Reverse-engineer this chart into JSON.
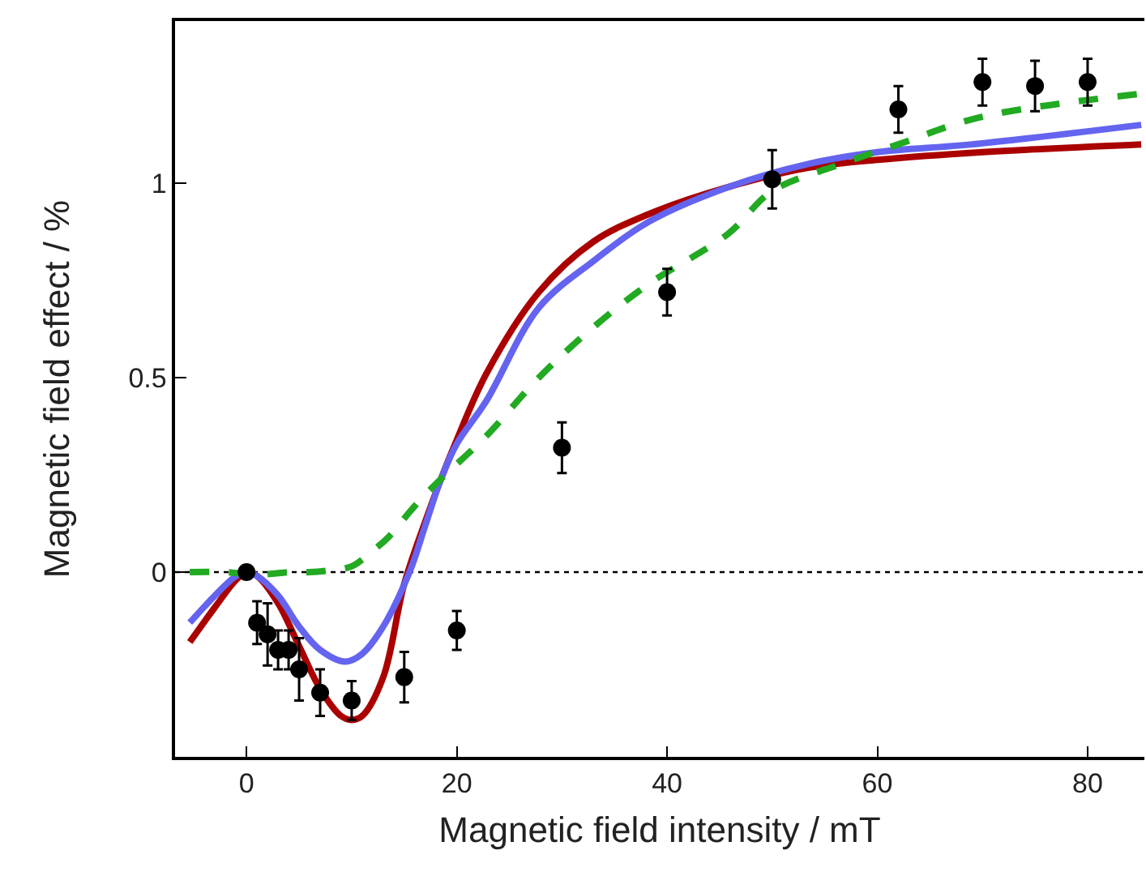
{
  "chart_data": {
    "type": "scatter",
    "xlabel": "Magnetic field intensity / mT",
    "ylabel": "Magnetic field effect / %",
    "xlim": [
      -6.8,
      85.4
    ],
    "xticks": [
      0,
      20,
      40,
      60,
      80
    ],
    "ylim": [
      -0.475,
      1.417
    ],
    "yticks": [
      0,
      0.5,
      1
    ],
    "grid": false,
    "ref_lines": [
      {
        "axis": "y",
        "value": 0,
        "color": "#000000",
        "line_style": "dotted"
      }
    ],
    "series": [
      {
        "color": "#000000",
        "marker": "circle",
        "x": [
          0,
          1,
          2,
          3,
          4,
          5,
          7,
          10,
          15,
          20,
          30,
          40,
          50,
          62,
          70,
          75,
          80
        ],
        "values": [
          0,
          -0.13,
          -0.16,
          -0.2,
          -0.2,
          -0.25,
          -0.31,
          -0.33,
          -0.27,
          -0.15,
          0.32,
          0.72,
          1.01,
          1.19,
          1.26,
          1.25,
          1.26
        ],
        "errors": [
          null,
          0.055,
          0.08,
          0.05,
          0.05,
          0.08,
          0.06,
          0.05,
          0.065,
          0.05,
          0.065,
          0.06,
          0.075,
          0.06,
          0.06,
          0.065,
          0.06
        ]
      },
      {
        "type": "line",
        "color": "#aa0000",
        "line_style": "solid",
        "marker": "none",
        "x": [
          -5.4,
          -3,
          -1,
          0,
          1,
          3,
          5,
          7,
          9,
          10,
          11,
          13,
          15,
          17,
          18.5,
          20,
          22.8,
          27.8,
          33,
          38.2,
          45.8,
          53.5,
          60,
          70,
          85.1
        ],
        "values": [
          -0.18,
          -0.09,
          -0.02,
          0,
          -0.01,
          -0.08,
          -0.19,
          -0.3,
          -0.37,
          -0.38,
          -0.37,
          -0.27,
          -0.03,
          0.13,
          0.24,
          0.34,
          0.51,
          0.72,
          0.85,
          0.92,
          0.99,
          1.04,
          1.06,
          1.08,
          1.1
        ]
      },
      {
        "type": "line",
        "color": "#6464f0",
        "line_style": "solid",
        "marker": "none",
        "x": [
          -5.4,
          -3,
          -1,
          0,
          1,
          3,
          5,
          7,
          9.4,
          11,
          13,
          15.5,
          17,
          18.5,
          20,
          22.8,
          27.8,
          33,
          38.2,
          45.8,
          53.5,
          60,
          69,
          85.1
        ],
        "values": [
          -0.13,
          -0.06,
          -0.01,
          0,
          -0.01,
          -0.06,
          -0.14,
          -0.2,
          -0.23,
          -0.21,
          -0.14,
          0,
          0.12,
          0.24,
          0.33,
          0.44,
          0.68,
          0.8,
          0.9,
          0.99,
          1.05,
          1.08,
          1.1,
          1.15
        ]
      },
      {
        "type": "line",
        "color": "#22aa22",
        "line_style": "dashed",
        "marker": "none",
        "x": [
          -5.4,
          -2,
          0,
          2,
          4,
          6,
          8,
          10,
          12,
          13.5,
          16,
          18.5,
          22.8,
          27.8,
          33,
          38.2,
          45.8,
          50,
          56.6,
          62,
          69.8,
          85.1
        ],
        "values": [
          0,
          0,
          -0.005,
          -0.005,
          0,
          0,
          0.005,
          0.015,
          0.055,
          0.09,
          0.17,
          0.24,
          0.35,
          0.5,
          0.63,
          0.74,
          0.87,
          0.98,
          1.05,
          1.1,
          1.17,
          1.23
        ]
      }
    ]
  }
}
